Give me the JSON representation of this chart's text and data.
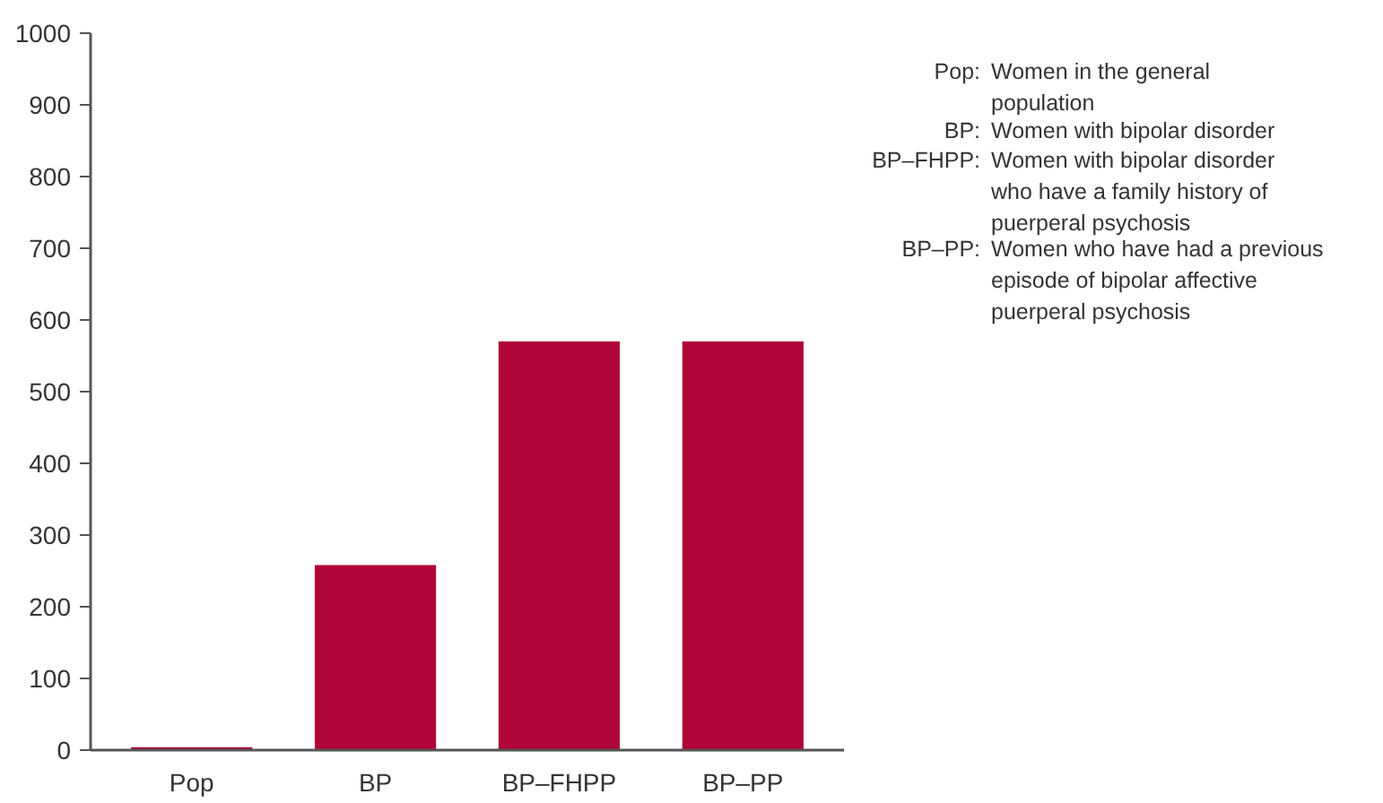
{
  "chart_data": {
    "type": "bar",
    "categories": [
      "Pop",
      "BP",
      "BP–FHPP",
      "BP–PP"
    ],
    "values": [
      4,
      258,
      570,
      570
    ],
    "color": "#b00538",
    "ylim": [
      0,
      1000
    ],
    "yticks": [
      0,
      100,
      200,
      300,
      400,
      500,
      600,
      700,
      800,
      900,
      1000
    ],
    "grid": false,
    "annotations": [
      "Pop:",
      "Women in the general population",
      "BP:",
      "Women with bipolar disorder",
      "BP–FHPP:",
      "Women with bipolar disorder who have a family history of puerperal psychosis",
      "BP–PP:",
      "Women who have had a previous episode of bipolar affective puerperal psychosis"
    ]
  }
}
